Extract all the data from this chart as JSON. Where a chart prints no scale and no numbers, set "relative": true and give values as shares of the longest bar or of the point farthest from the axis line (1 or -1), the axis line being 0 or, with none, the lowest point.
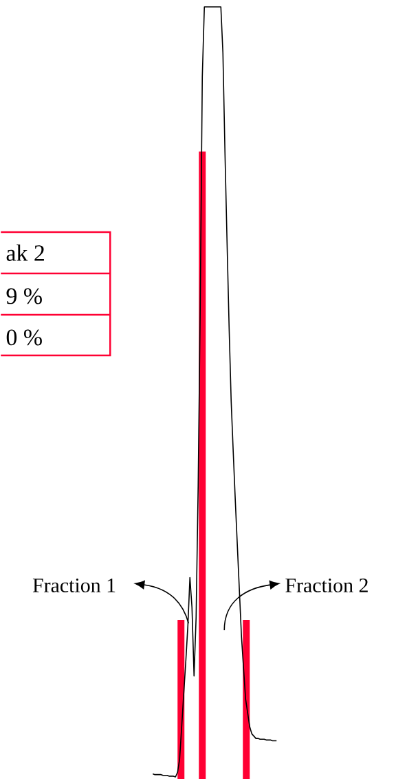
{
  "chart_data": {
    "type": "line",
    "relative": true,
    "annotations": [
      "Fraction 1",
      "Fraction 2",
      "ak 2",
      "9 %",
      "0 %"
    ],
    "categories": [
      null,
      null,
      null,
      null,
      null,
      null,
      null,
      null,
      null,
      null,
      null,
      null,
      null,
      null,
      null,
      null,
      null,
      null,
      null,
      null,
      null,
      null,
      null,
      null,
      null,
      null,
      null,
      null,
      null,
      null,
      null,
      null,
      null,
      null,
      null,
      null,
      null,
      null,
      null,
      null,
      null,
      null,
      null,
      null,
      null,
      null,
      null,
      null,
      null,
      null,
      null,
      null,
      null,
      null,
      null,
      null,
      null,
      null,
      null,
      null,
      null
    ],
    "series": [
      {
        "color": "#000000",
        "values": [
          0.004,
          0.003,
          0.003,
          0.003,
          0.003,
          0.002,
          0.002,
          0.002,
          0.001,
          0.001,
          0.001,
          0,
          0.006,
          0.023,
          0.065,
          0.108,
          0.15,
          0.196,
          0.259,
          0.22,
          0.131,
          0.207,
          0.378,
          0.611,
          0.909,
          1,
          1,
          1,
          1,
          1,
          1,
          1,
          1,
          1,
          0.94,
          0.81,
          0.695,
          0.584,
          0.488,
          0.422,
          0.359,
          0.3,
          0.241,
          0.182,
          0.141,
          0.101,
          0.083,
          0.065,
          0.056,
          0.053,
          0.05,
          0.05,
          0.049,
          0.049,
          0.049,
          0.048,
          0.048,
          0.048,
          0.047,
          0.047,
          0.047
        ]
      }
    ]
  }
}
